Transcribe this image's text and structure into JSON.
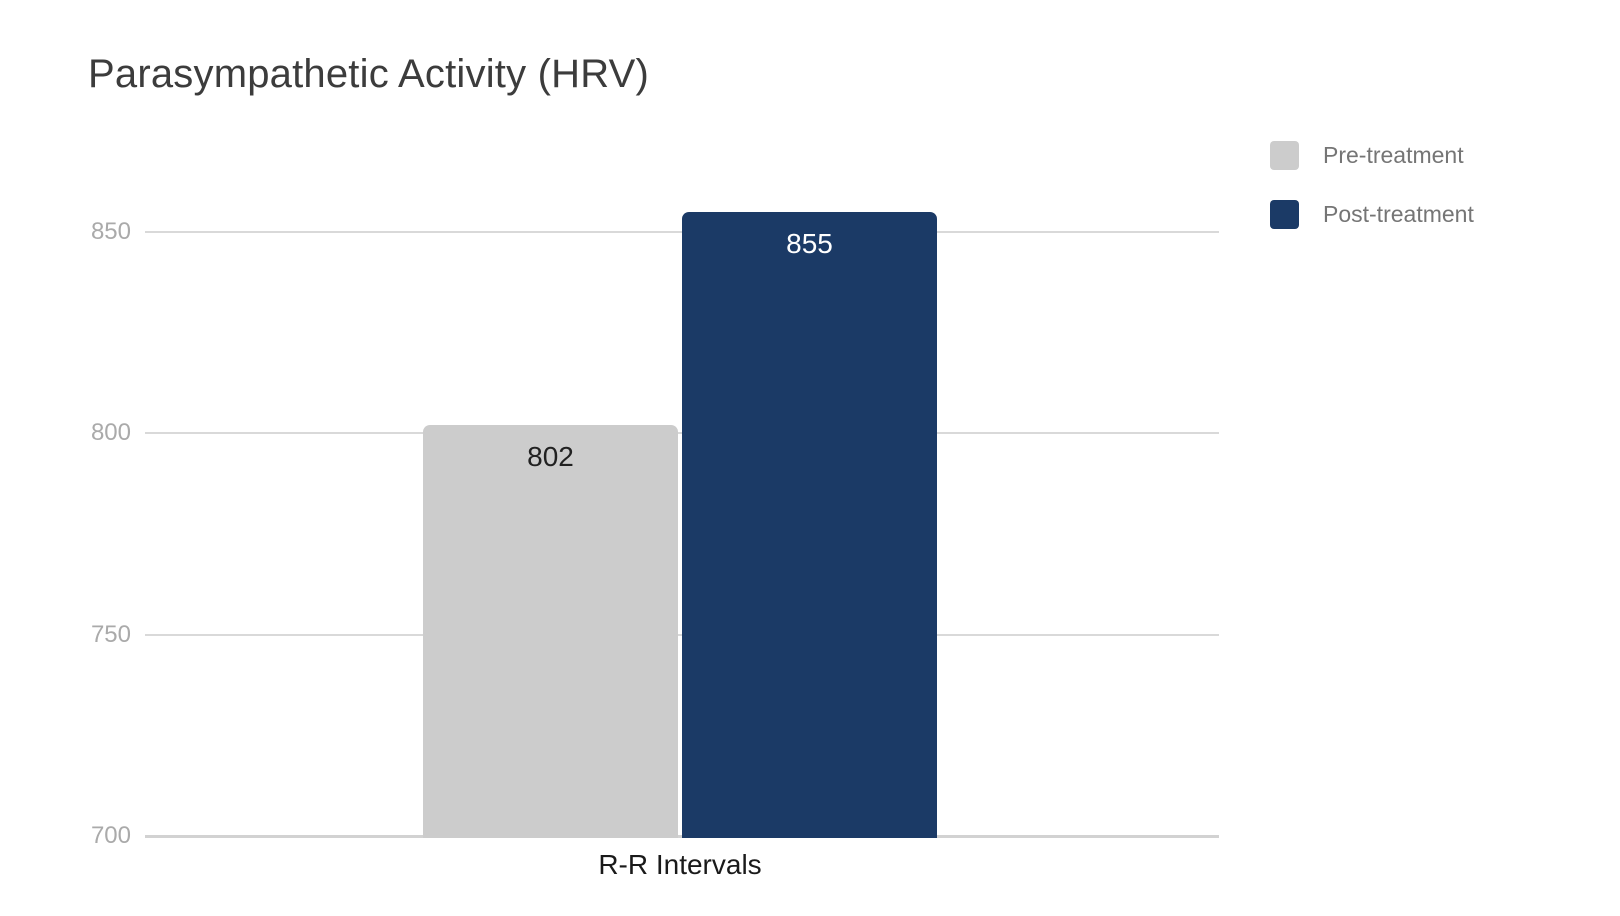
{
  "chart_data": {
    "type": "bar",
    "title": "Parasympathetic Activity (HRV)",
    "categories": [
      "R-R Intervals"
    ],
    "series": [
      {
        "name": "Pre-treatment",
        "values": [
          802
        ],
        "color": "#cccccc",
        "value_label_color": "#212121"
      },
      {
        "name": "Post-treatment",
        "values": [
          855
        ],
        "color": "#1b3a66",
        "value_label_color": "#ffffff"
      }
    ],
    "xlabel": "R-R Intervals",
    "ylabel": "",
    "yticks": [
      700,
      750,
      800,
      850
    ],
    "ylim": [
      700,
      875
    ],
    "grid": true,
    "legend_position": "top-right",
    "colors": {
      "title_text": "#3c3c3c",
      "axis_tick_text": "#aaaaaa",
      "category_text": "#1a1a1a",
      "legend_text": "#757575",
      "gridline": "#d9d9d9",
      "baseline": "#d2d2d2",
      "background": "#ffffff"
    }
  }
}
